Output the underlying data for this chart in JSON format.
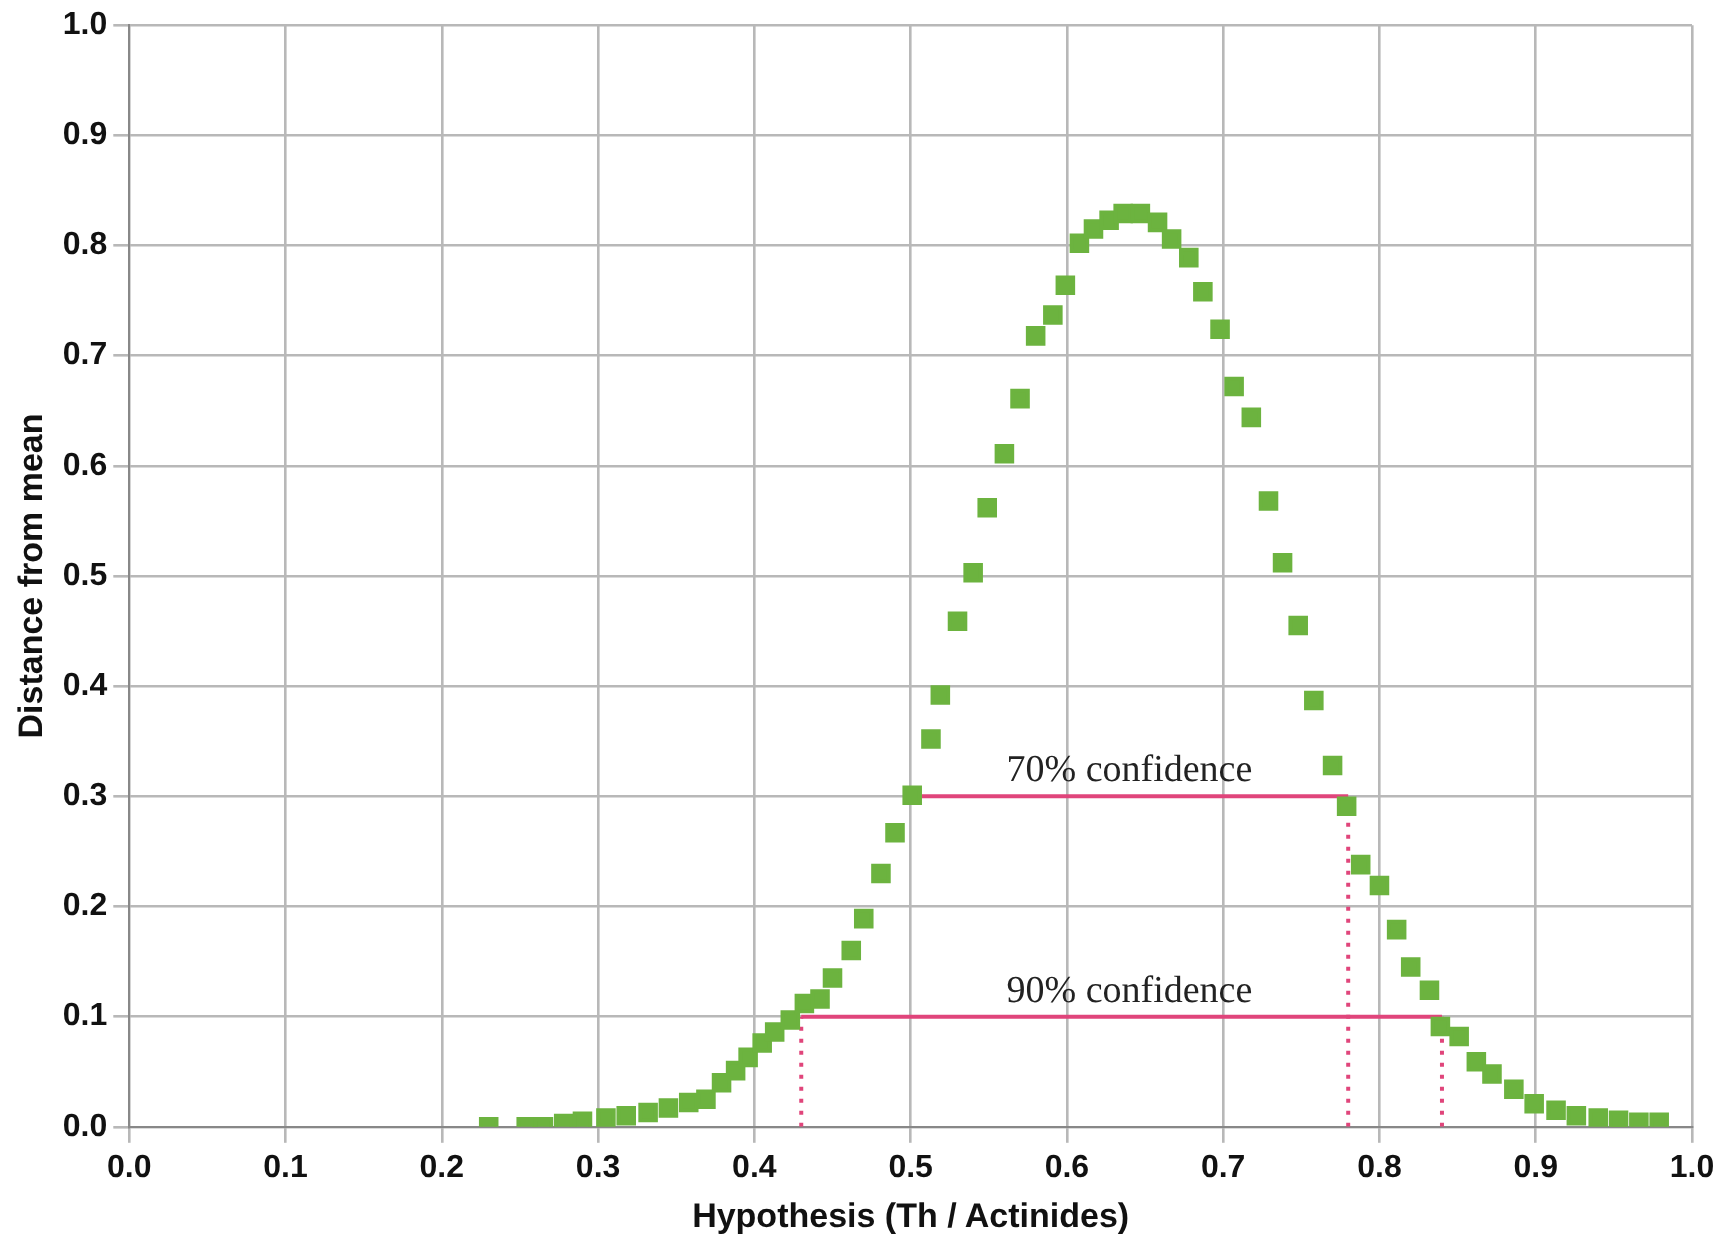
{
  "chart_data": {
    "type": "scatter",
    "xlabel": "Hypothesis (Th / Actinides)",
    "ylabel": "Distance from mean",
    "xlim": [
      0,
      1
    ],
    "ylim": [
      0,
      1
    ],
    "xticks": [
      {
        "value": 0,
        "label": "0.0"
      },
      0.1,
      0.2,
      0.3,
      0.4,
      0.5,
      0.6,
      0.7,
      0.8,
      0.9,
      {
        "value": 1,
        "label": "1.0"
      }
    ],
    "yticks": [
      {
        "value": 0,
        "label": "0.0"
      },
      0.1,
      0.2,
      0.3,
      0.4,
      0.5,
      0.6,
      0.7,
      0.8,
      0.9,
      {
        "value": 1,
        "label": "1.0"
      }
    ],
    "grid": true,
    "legend": false,
    "marker": "square",
    "series": [
      {
        "color": "#6cb33f",
        "x": [
          0.23,
          0.254,
          0.265,
          0.278,
          0.29,
          0.305,
          0.318,
          0.332,
          0.345,
          0.358,
          0.369,
          0.379,
          0.388,
          0.396,
          0.405,
          0.413,
          0.423,
          0.432,
          0.442,
          0.45,
          0.462,
          0.47,
          0.481,
          0.49,
          0.501,
          0.513,
          0.519,
          0.53,
          0.54,
          0.549,
          0.56,
          0.57,
          0.58,
          0.591,
          0.599,
          0.608,
          0.617,
          0.627,
          0.636,
          0.647,
          0.658,
          0.667,
          0.678,
          0.687,
          0.698,
          0.707,
          0.718,
          0.729,
          0.738,
          0.748,
          0.758,
          0.77,
          0.779,
          0.788,
          0.8,
          0.811,
          0.82,
          0.832,
          0.839,
          0.851,
          0.862,
          0.872,
          0.886,
          0.899,
          0.913,
          0.926,
          0.94,
          0.953,
          0.966,
          0.979
        ],
        "values": [
          0,
          0,
          0,
          0.003,
          0.005,
          0.008,
          0.01,
          0.013,
          0.017,
          0.022,
          0.025,
          0.04,
          0.051,
          0.063,
          0.076,
          0.086,
          0.097,
          0.112,
          0.116,
          0.135,
          0.16,
          0.189,
          0.23,
          0.267,
          0.301,
          0.352,
          0.392,
          0.459,
          0.503,
          0.562,
          0.611,
          0.661,
          0.718,
          0.737,
          0.764,
          0.802,
          0.815,
          0.823,
          0.829,
          0.829,
          0.821,
          0.806,
          0.789,
          0.758,
          0.724,
          0.672,
          0.644,
          0.568,
          0.512,
          0.455,
          0.387,
          0.328,
          0.291,
          0.238,
          0.219,
          0.179,
          0.145,
          0.124,
          0.091,
          0.082,
          0.059,
          0.048,
          0.034,
          0.021,
          0.015,
          0.01,
          0.008,
          0.006,
          0.004,
          0.004
        ]
      },
      {
        "type": "line",
        "color": "#e0457b",
        "marker": "none",
        "line_style": "solid",
        "x": [
          0.5,
          0.78
        ],
        "values": [
          0.3,
          0.3
        ]
      },
      {
        "type": "line",
        "color": "#e0457b",
        "marker": "none",
        "line_style": "solid",
        "x": [
          0.43,
          0.84
        ],
        "values": [
          0.1,
          0.1
        ]
      },
      {
        "type": "line",
        "color": "#e0457b",
        "marker": "none",
        "line_style": "dotted",
        "x": [
          0.43,
          0.43
        ],
        "values": [
          0,
          0.1
        ]
      },
      {
        "type": "line",
        "color": "#e0457b",
        "marker": "none",
        "line_style": "dotted",
        "x": [
          0.78,
          0.78
        ],
        "values": [
          0,
          0.3
        ]
      },
      {
        "type": "line",
        "color": "#e0457b",
        "marker": "none",
        "line_style": "dotted",
        "x": [
          0.84,
          0.84
        ],
        "values": [
          0,
          0.1
        ]
      }
    ],
    "annotations": [
      {
        "text": "70% confidence",
        "x": 0.64,
        "y": 0.3
      },
      {
        "text": "90% confidence",
        "x": 0.64,
        "y": 0.1
      }
    ]
  }
}
